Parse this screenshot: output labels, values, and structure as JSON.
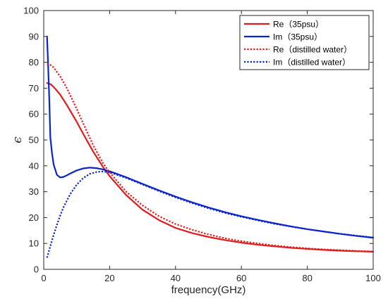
{
  "chart_data": {
    "type": "line",
    "title": "",
    "xlabel": "frequency(GHz)",
    "ylabel": "ϵ",
    "xlim": [
      0,
      100
    ],
    "ylim": [
      0,
      100
    ],
    "xticks": [
      0,
      20,
      40,
      60,
      80,
      100
    ],
    "yticks": [
      0,
      10,
      20,
      30,
      40,
      50,
      60,
      70,
      80,
      90,
      100
    ],
    "grid": false,
    "legend_position": "top-right",
    "series": [
      {
        "name": "Re（35psu）",
        "color": "#e31a1c",
        "line_style": "solid",
        "x": [
          1,
          2,
          3,
          5,
          7,
          10,
          13,
          15,
          18,
          20,
          25,
          30,
          35,
          40,
          45,
          50,
          55,
          60,
          65,
          70,
          75,
          80,
          85,
          90,
          95,
          100
        ],
        "y": [
          72,
          71.6,
          70.5,
          67.5,
          63.5,
          57,
          50,
          45.5,
          39.5,
          36,
          28.7,
          23,
          19,
          16,
          14,
          12.5,
          11.3,
          10.3,
          9.5,
          8.9,
          8.3,
          7.9,
          7.5,
          7.2,
          7,
          6.8
        ]
      },
      {
        "name": "Im（35psu）",
        "color": "#0b24c9",
        "line_style": "solid",
        "x": [
          1,
          1.3,
          1.7,
          2,
          2.5,
          3,
          4,
          5,
          6,
          7,
          8,
          10,
          12,
          14,
          16,
          18,
          20,
          25,
          30,
          35,
          40,
          45,
          50,
          55,
          60,
          65,
          70,
          75,
          80,
          85,
          90,
          95,
          100
        ],
        "y": [
          90,
          80,
          65,
          51,
          45,
          40.5,
          36.5,
          35.5,
          35.7,
          36.3,
          37,
          38.2,
          39,
          39.3,
          39.1,
          38.6,
          37.9,
          35.6,
          33,
          30.5,
          28.1,
          25.9,
          23.9,
          22.1,
          20.5,
          19.1,
          17.8,
          16.6,
          15.5,
          14.6,
          13.7,
          12.9,
          12.2
        ]
      },
      {
        "name": "Re（distilled water）",
        "color": "#e31a1c",
        "line_style": "dotted",
        "x": [
          1,
          2,
          3,
          5,
          7,
          10,
          13,
          15,
          18,
          20,
          25,
          30,
          35,
          40,
          45,
          50,
          55,
          60,
          65,
          70,
          75,
          80,
          85,
          90,
          95,
          100
        ],
        "y": [
          79.5,
          79,
          78,
          74.5,
          70,
          62,
          53.5,
          48,
          41,
          37.5,
          30,
          24.7,
          20.5,
          17.5,
          15.3,
          13.5,
          12,
          10.9,
          10,
          9.2,
          8.6,
          8.1,
          7.7,
          7.4,
          7.1,
          6.9
        ]
      },
      {
        "name": "Im（distilled water）",
        "color": "#0b24c9",
        "line_style": "dotted",
        "x": [
          1,
          2,
          3,
          4,
          5,
          6,
          8,
          10,
          12,
          14,
          16,
          18,
          20,
          25,
          30,
          35,
          40,
          45,
          50,
          55,
          60,
          65,
          70,
          75,
          80,
          85,
          90,
          95,
          100
        ],
        "y": [
          4.5,
          9,
          13.3,
          17.2,
          20.8,
          24,
          29,
          32.7,
          35.3,
          36.9,
          37.6,
          37.8,
          37.5,
          35.3,
          32.8,
          30.2,
          27.8,
          25.6,
          23.6,
          21.8,
          20.3,
          18.9,
          17.6,
          16.5,
          15.5,
          14.6,
          13.7,
          13,
          12.3
        ]
      }
    ]
  }
}
